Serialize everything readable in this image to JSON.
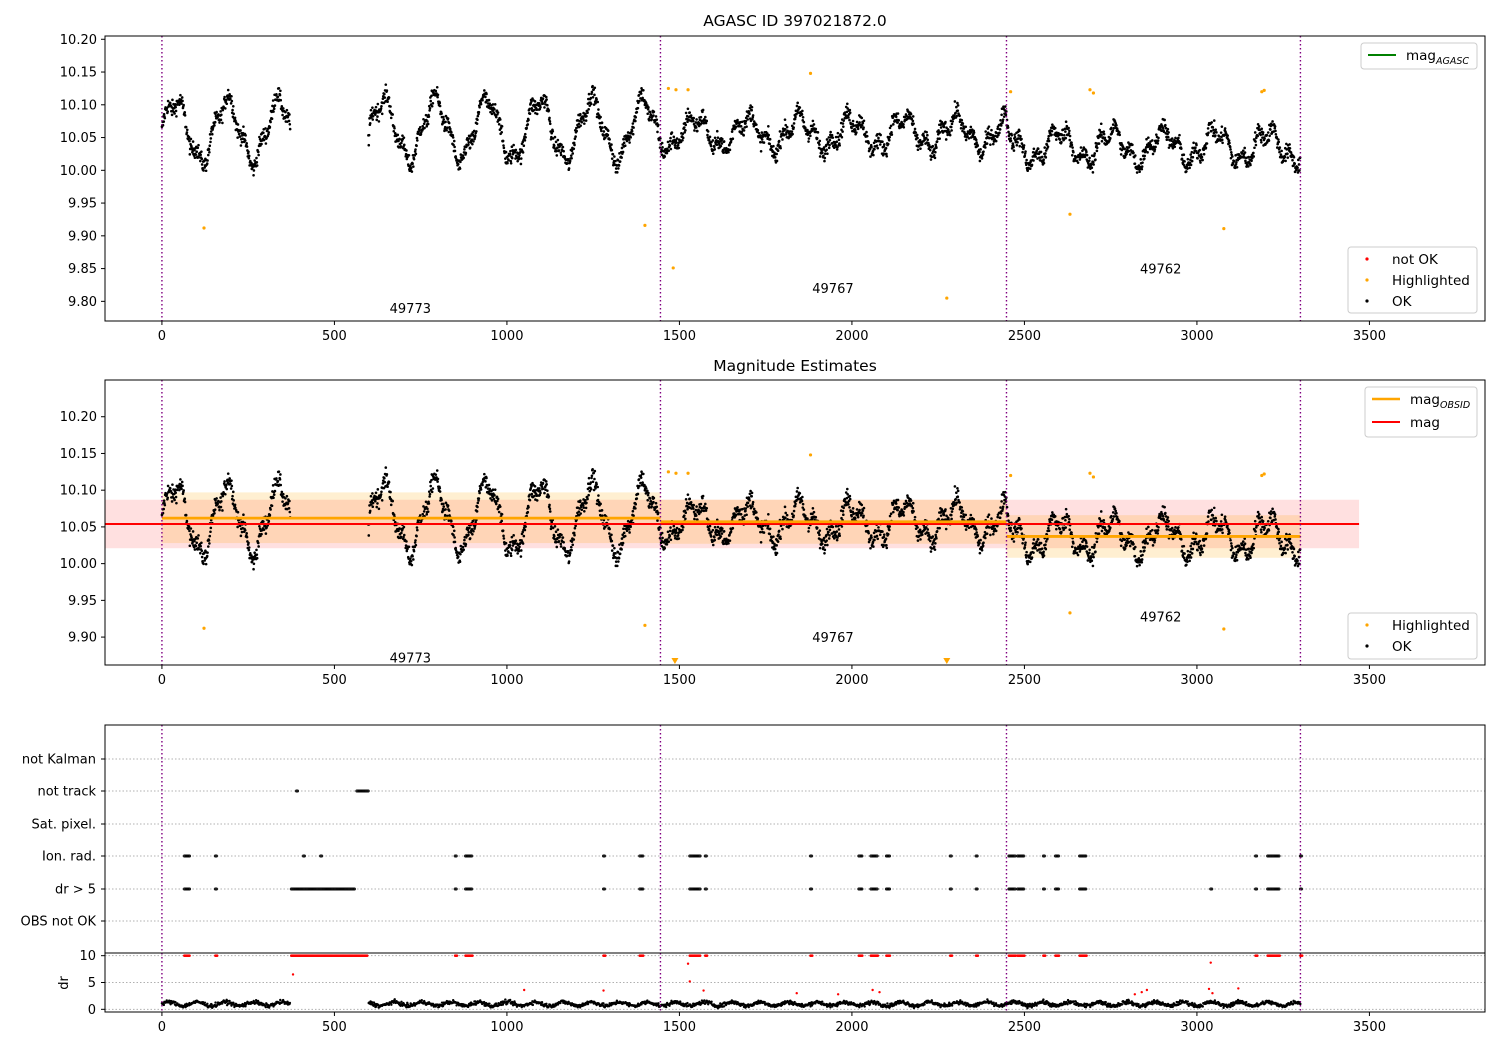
{
  "chart_data": [
    {
      "type": "scatter",
      "title": "AGASC ID 397021872.0",
      "xlim": [
        -165,
        3835
      ],
      "ylim": [
        9.77,
        10.205
      ],
      "xticks": [
        0,
        500,
        1000,
        1500,
        2000,
        2500,
        3000,
        3500
      ],
      "yticks": [
        9.8,
        9.85,
        9.9,
        9.95,
        10.0,
        10.05,
        10.1,
        10.15,
        10.2
      ],
      "ytick_labels": [
        "9.80",
        "9.85",
        "9.90",
        "9.95",
        "10.00",
        "10.05",
        "10.10",
        "10.15",
        "10.20"
      ],
      "obsid_boundaries": [
        0,
        1445,
        2448,
        3300
      ],
      "obsids": [
        {
          "label": "49773",
          "x": 720,
          "y": 9.79
        },
        {
          "label": "49767",
          "x": 1945,
          "y": 9.82
        },
        {
          "label": "49762",
          "x": 2895,
          "y": 9.85
        }
      ],
      "segments": [
        {
          "obsid": "49773",
          "x_start": 0,
          "x_end": 370,
          "mean": 10.06
        },
        {
          "obsid": "49773",
          "x_start": 600,
          "x_end": 1445,
          "mean": 10.062
        },
        {
          "obsid": "49767",
          "x_start": 1450,
          "x_end": 2448,
          "mean": 10.057
        },
        {
          "obsid": "49762",
          "x_start": 2450,
          "x_end": 3300,
          "mean": 10.037
        }
      ],
      "highlighted_points": [
        {
          "x": 122,
          "y": 9.912
        },
        {
          "x": 1400,
          "y": 9.916
        },
        {
          "x": 1482,
          "y": 9.851
        },
        {
          "x": 1468,
          "y": 10.125
        },
        {
          "x": 1490,
          "y": 10.123
        },
        {
          "x": 1525,
          "y": 10.123
        },
        {
          "x": 1880,
          "y": 10.148
        },
        {
          "x": 2275,
          "y": 9.805
        },
        {
          "x": 2460,
          "y": 10.12
        },
        {
          "x": 2632,
          "y": 9.933
        },
        {
          "x": 2690,
          "y": 10.123
        },
        {
          "x": 2700,
          "y": 10.118
        },
        {
          "x": 3078,
          "y": 9.911
        },
        {
          "x": 3188,
          "y": 10.12
        },
        {
          "x": 3195,
          "y": 10.122
        }
      ],
      "legend_upper": [
        {
          "label": "mag",
          "sub": "AGASC",
          "color": "#008000"
        }
      ],
      "legend_lower": [
        {
          "label": "not OK",
          "color": "#ff0000"
        },
        {
          "label": "Highlighted",
          "color": "#ffa500"
        },
        {
          "label": "OK",
          "color": "#000000"
        }
      ]
    },
    {
      "type": "scatter",
      "title": "Magnitude Estimates",
      "xlim": [
        -165,
        3835
      ],
      "ylim": [
        9.862,
        10.25
      ],
      "xticks": [
        0,
        500,
        1000,
        1500,
        2000,
        2500,
        3000,
        3500
      ],
      "yticks": [
        9.9,
        9.95,
        10.0,
        10.05,
        10.1,
        10.15,
        10.2
      ],
      "ytick_labels": [
        "9.90",
        "9.95",
        "10.00",
        "10.05",
        "10.10",
        "10.15",
        "10.20"
      ],
      "obsid_boundaries": [
        0,
        1445,
        2448,
        3300
      ],
      "obsids": [
        {
          "label": "49773",
          "x": 720,
          "y": 9.872
        },
        {
          "label": "49767",
          "x": 1945,
          "y": 9.9
        },
        {
          "label": "49762",
          "x": 2895,
          "y": 9.928
        }
      ],
      "mag": {
        "value": 10.054,
        "band_low": 10.021,
        "band_high": 10.087,
        "x_start": -165,
        "x_end": 3470,
        "color": "#ff0000"
      },
      "mag_obsid": [
        {
          "x_start": 0,
          "x_end": 1445,
          "value": 10.062,
          "band_low": 10.028,
          "band_high": 10.097
        },
        {
          "x_start": 1445,
          "x_end": 2448,
          "value": 10.057,
          "band_low": 10.027,
          "band_high": 10.087
        },
        {
          "x_start": 2448,
          "x_end": 3300,
          "value": 10.037,
          "band_low": 10.008,
          "band_high": 10.066
        }
      ],
      "highlighted_points": [
        {
          "x": 122,
          "y": 9.912
        },
        {
          "x": 1400,
          "y": 9.916
        },
        {
          "x": 1468,
          "y": 10.125
        },
        {
          "x": 1490,
          "y": 10.123
        },
        {
          "x": 1525,
          "y": 10.123
        },
        {
          "x": 1880,
          "y": 10.148
        },
        {
          "x": 2460,
          "y": 10.12
        },
        {
          "x": 2632,
          "y": 9.933
        },
        {
          "x": 2690,
          "y": 10.123
        },
        {
          "x": 2700,
          "y": 10.118
        },
        {
          "x": 3078,
          "y": 9.911
        },
        {
          "x": 3188,
          "y": 10.12
        },
        {
          "x": 3195,
          "y": 10.122
        }
      ],
      "offscale_markers": [
        {
          "x": 1487
        },
        {
          "x": 2275
        }
      ],
      "legend_upper": [
        {
          "label": "mag",
          "sub": "OBSID",
          "color": "#ffa500"
        },
        {
          "label": "mag",
          "sub": "",
          "color": "#ff0000"
        }
      ],
      "legend_lower": [
        {
          "label": "Highlighted",
          "color": "#ffa500"
        },
        {
          "label": "OK",
          "color": "#000000"
        }
      ]
    },
    {
      "type": "scatter",
      "title": "",
      "xlim": [
        -165,
        3835
      ],
      "xticks": [
        0,
        500,
        1000,
        1500,
        2000,
        2500,
        3000,
        3500
      ],
      "obsid_boundaries": [
        0,
        1445,
        2448,
        3300
      ],
      "flag_rows": [
        "not Kalman",
        "not track",
        "Sat. pixel.",
        "Ion. rad.",
        "dr > 5",
        "OBS not OK"
      ],
      "flags": {
        "not track": [
          [
            390,
            395
          ],
          [
            565,
            600
          ]
        ],
        "Ion. rad.": [
          [
            65,
            80
          ],
          [
            155,
            160
          ],
          [
            410,
            415
          ],
          [
            460,
            465
          ],
          [
            850,
            855
          ],
          [
            880,
            900
          ],
          [
            1280,
            1285
          ],
          [
            1385,
            1395
          ],
          [
            1530,
            1560
          ],
          [
            1575,
            1580
          ],
          [
            1880,
            1885
          ],
          [
            2020,
            2030
          ],
          [
            2055,
            2075
          ],
          [
            2100,
            2110
          ],
          [
            2285,
            2290
          ],
          [
            2360,
            2365
          ],
          [
            2455,
            2475
          ],
          [
            2480,
            2500
          ],
          [
            2555,
            2560
          ],
          [
            2590,
            2600
          ],
          [
            2660,
            2680
          ],
          [
            3170,
            3175
          ],
          [
            3205,
            3240
          ],
          [
            3300,
            3305
          ]
        ],
        "dr > 5": [
          [
            65,
            80
          ],
          [
            155,
            160
          ],
          [
            375,
            560
          ],
          [
            850,
            855
          ],
          [
            880,
            900
          ],
          [
            1280,
            1285
          ],
          [
            1385,
            1395
          ],
          [
            1530,
            1560
          ],
          [
            1575,
            1580
          ],
          [
            1880,
            1885
          ],
          [
            2020,
            2030
          ],
          [
            2055,
            2075
          ],
          [
            2100,
            2110
          ],
          [
            2285,
            2290
          ],
          [
            2360,
            2365
          ],
          [
            2455,
            2475
          ],
          [
            2480,
            2500
          ],
          [
            2555,
            2560
          ],
          [
            2590,
            2600
          ],
          [
            2660,
            2680
          ],
          [
            3040,
            3045
          ],
          [
            3170,
            3175
          ],
          [
            3205,
            3240
          ],
          [
            3300,
            3305
          ]
        ]
      },
      "dr": {
        "ylabel": "dr",
        "ylim": [
          -0.5,
          10.5
        ],
        "yticks": [
          0,
          5,
          10
        ],
        "clip_ranges": [
          [
            65,
            80
          ],
          [
            155,
            160
          ],
          [
            375,
            595
          ],
          [
            850,
            855
          ],
          [
            880,
            900
          ],
          [
            1280,
            1285
          ],
          [
            1385,
            1395
          ],
          [
            1530,
            1560
          ],
          [
            1575,
            1580
          ],
          [
            1880,
            1885
          ],
          [
            2020,
            2030
          ],
          [
            2055,
            2075
          ],
          [
            2100,
            2110
          ],
          [
            2285,
            2290
          ],
          [
            2360,
            2365
          ],
          [
            2455,
            2475
          ],
          [
            2480,
            2500
          ],
          [
            2555,
            2560
          ],
          [
            2590,
            2600
          ],
          [
            2660,
            2680
          ],
          [
            3170,
            3175
          ],
          [
            3205,
            3240
          ],
          [
            3300,
            3305
          ]
        ],
        "red_points": [
          {
            "x": 380,
            "y": 6.5
          },
          {
            "x": 1280,
            "y": 3.5
          },
          {
            "x": 1525,
            "y": 8.5
          },
          {
            "x": 1530,
            "y": 5.2
          },
          {
            "x": 1570,
            "y": 3.5
          },
          {
            "x": 1050,
            "y": 3.6
          },
          {
            "x": 1840,
            "y": 3.0
          },
          {
            "x": 1960,
            "y": 2.8
          },
          {
            "x": 2060,
            "y": 3.6
          },
          {
            "x": 2080,
            "y": 3.2
          },
          {
            "x": 2820,
            "y": 2.8
          },
          {
            "x": 2840,
            "y": 3.2
          },
          {
            "x": 2855,
            "y": 3.6
          },
          {
            "x": 3035,
            "y": 3.8
          },
          {
            "x": 3045,
            "y": 3.0
          },
          {
            "x": 3120,
            "y": 3.9
          },
          {
            "x": 3040,
            "y": 8.7
          }
        ]
      }
    }
  ]
}
